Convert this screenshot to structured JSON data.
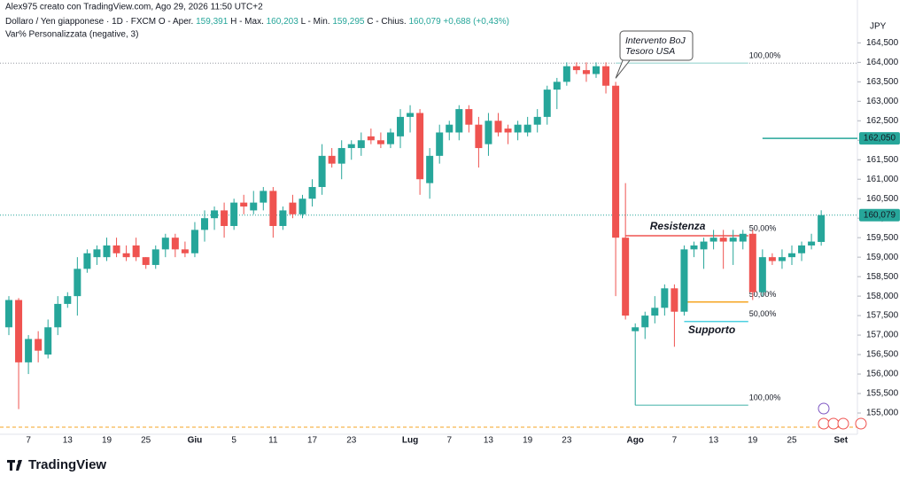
{
  "chart_data": {
    "type": "candlestick",
    "attribution": "Alex975 creato con TradingView.com, Ago 29, 2026 11:50 UTC+2",
    "symbol": "Dollaro / Yen giapponese · 1D · FXCM",
    "legend": [
      {
        "key": "O - Aper.",
        "value": "159,391"
      },
      {
        "key": "H - Max.",
        "value": "160,203"
      },
      {
        "key": "L - Min.",
        "value": "159,295"
      },
      {
        "key": "C - Chius.",
        "value": "160,079"
      }
    ],
    "change": "+0,688 (+0,43%)",
    "indicator": "Var% Personalizzata (negative, 3)",
    "currency": "JPY",
    "brand": "TradingView",
    "up_color": "#26a69a",
    "down_color": "#ef5350",
    "categories": [
      null,
      null,
      "7",
      null,
      null,
      null,
      "13",
      null,
      null,
      null,
      "19",
      null,
      null,
      null,
      "25",
      null,
      null,
      null,
      null,
      "Giu",
      null,
      null,
      null,
      "5",
      null,
      null,
      null,
      "11",
      null,
      null,
      null,
      "17",
      null,
      null,
      null,
      "23",
      null,
      null,
      null,
      null,
      null,
      "Lug",
      null,
      null,
      null,
      "7",
      null,
      null,
      null,
      "13",
      null,
      null,
      null,
      "19",
      null,
      null,
      null,
      "23",
      null,
      null,
      null,
      null,
      null,
      null,
      "Ago",
      null,
      null,
      null,
      "7",
      null,
      null,
      null,
      "13",
      null,
      null,
      null,
      "19",
      null,
      null,
      null,
      "25",
      null,
      null,
      null,
      null,
      "Set"
    ],
    "open": [
      157.2,
      157.9,
      156.3,
      156.9,
      156.5,
      157.2,
      157.8,
      158.0,
      158.7,
      159.0,
      159.0,
      159.3,
      159.1,
      159.3,
      159.0,
      158.8,
      159.2,
      159.5,
      159.2,
      159.1,
      159.7,
      160.0,
      160.2,
      159.8,
      160.4,
      160.2,
      160.4,
      160.7,
      159.8,
      160.4,
      160.1,
      160.5,
      160.8,
      161.6,
      161.4,
      161.8,
      161.8,
      162.1,
      162.0,
      161.9,
      162.1,
      162.6,
      162.7,
      160.9,
      161.6,
      162.2,
      162.2,
      162.8,
      162.4,
      161.9,
      162.5,
      162.3,
      162.2,
      162.2,
      162.4,
      162.6,
      163.3,
      163.5,
      163.9,
      163.8,
      163.7,
      163.9,
      163.4,
      159.5,
      157.1,
      157.2,
      157.5,
      157.7,
      158.2,
      157.6,
      159.2,
      159.2,
      159.4,
      159.5,
      159.4,
      159.4,
      159.6,
      158.1,
      159.0,
      158.9,
      159.0,
      159.1,
      159.3,
      159.391,
      null,
      null
    ],
    "high": [
      158.0,
      157.95,
      157.0,
      157.1,
      157.4,
      158.0,
      158.1,
      159.0,
      159.2,
      159.3,
      159.5,
      159.5,
      159.3,
      159.5,
      159.0,
      159.3,
      159.6,
      159.6,
      159.4,
      159.9,
      160.2,
      160.3,
      160.4,
      160.5,
      160.6,
      160.7,
      160.8,
      160.8,
      160.3,
      160.6,
      160.6,
      161.0,
      161.9,
      161.8,
      162.0,
      162.0,
      162.2,
      162.3,
      162.2,
      162.3,
      162.8,
      162.9,
      162.8,
      161.8,
      162.4,
      162.5,
      162.9,
      162.9,
      162.6,
      162.7,
      162.7,
      162.4,
      162.5,
      162.6,
      162.8,
      163.4,
      163.6,
      164.0,
      164.0,
      164.0,
      164.0,
      164.0,
      163.5,
      160.9,
      157.3,
      157.6,
      158.0,
      158.3,
      158.3,
      159.3,
      159.4,
      159.5,
      159.7,
      159.7,
      159.7,
      159.7,
      159.7,
      159.2,
      159.1,
      159.2,
      159.3,
      159.4,
      159.6,
      160.203,
      null,
      null
    ],
    "low": [
      157.0,
      155.1,
      156.0,
      156.3,
      156.4,
      157.0,
      157.7,
      157.5,
      158.6,
      158.8,
      158.9,
      159.0,
      158.9,
      158.9,
      158.7,
      158.7,
      159.0,
      159.0,
      159.0,
      159.0,
      159.4,
      159.7,
      159.5,
      159.7,
      160.1,
      160.1,
      160.2,
      159.5,
      159.7,
      160.0,
      160.0,
      160.3,
      160.6,
      161.3,
      161.0,
      161.5,
      161.6,
      161.9,
      161.8,
      161.8,
      161.8,
      162.2,
      160.6,
      160.5,
      161.4,
      162.0,
      162.0,
      162.2,
      161.3,
      161.6,
      162.1,
      161.9,
      162.0,
      162.1,
      162.2,
      162.4,
      162.8,
      163.4,
      163.7,
      163.5,
      163.6,
      163.2,
      158.0,
      157.4,
      155.2,
      156.9,
      157.3,
      157.5,
      156.7,
      157.5,
      159.0,
      158.7,
      159.2,
      158.7,
      158.8,
      159.2,
      157.9,
      158.0,
      158.8,
      158.7,
      158.8,
      158.9,
      159.2,
      159.295,
      null,
      null
    ],
    "close": [
      157.9,
      156.3,
      156.9,
      156.6,
      157.2,
      157.8,
      158.0,
      158.7,
      159.1,
      159.2,
      159.3,
      159.1,
      159.0,
      159.0,
      158.8,
      159.2,
      159.5,
      159.2,
      159.1,
      159.7,
      160.0,
      160.2,
      159.8,
      160.4,
      160.3,
      160.4,
      160.7,
      159.8,
      160.2,
      160.1,
      160.5,
      160.8,
      161.6,
      161.4,
      161.8,
      161.9,
      162.0,
      162.0,
      161.9,
      162.2,
      162.6,
      162.7,
      161.0,
      161.6,
      162.2,
      162.4,
      162.8,
      162.4,
      161.8,
      162.5,
      162.2,
      162.2,
      162.4,
      162.4,
      162.6,
      163.3,
      163.5,
      163.9,
      163.8,
      163.7,
      163.9,
      163.4,
      159.5,
      157.5,
      157.2,
      157.5,
      157.7,
      158.2,
      157.6,
      159.2,
      159.3,
      159.4,
      159.5,
      159.4,
      159.5,
      159.6,
      158.1,
      159.0,
      158.9,
      159.0,
      159.1,
      159.3,
      159.4,
      160.079,
      null,
      null
    ],
    "ylim": [
      154.5,
      165.6
    ],
    "yticks": [
      {
        "value": 164.5,
        "label": "164,500"
      },
      {
        "value": 164,
        "label": "164,000"
      },
      {
        "value": 163.5,
        "label": "163,500"
      },
      {
        "value": 163,
        "label": "163,000"
      },
      {
        "value": 162.5,
        "label": "162,500"
      },
      {
        "value": 162,
        "label": "162,000"
      },
      {
        "value": 161.5,
        "label": "161,500"
      },
      {
        "value": 161,
        "label": "161,000"
      },
      {
        "value": 160.5,
        "label": "160,500"
      },
      {
        "value": 160,
        "label": "160,000"
      },
      {
        "value": 159.5,
        "label": "159,500"
      },
      {
        "value": 159,
        "label": "159,000"
      },
      {
        "value": 158.5,
        "label": "158,500"
      },
      {
        "value": 158,
        "label": "158,000"
      },
      {
        "value": 157.5,
        "label": "157,500"
      },
      {
        "value": 157,
        "label": "157,000"
      },
      {
        "value": 156.5,
        "label": "156,500"
      },
      {
        "value": 156,
        "label": "156,000"
      },
      {
        "value": 155.5,
        "label": "155,500"
      },
      {
        "value": 155,
        "label": "155,000"
      }
    ],
    "last_price": {
      "value": 160.079,
      "label": "160,079"
    },
    "level_tag": {
      "value": 162.05,
      "label": "162,050",
      "from": 77
    },
    "levels": [
      {
        "price": 163.98,
        "from": 62,
        "to": 76,
        "color": "#b2dfdb",
        "label": "100,00%",
        "label_color": "#b2dfdb"
      },
      {
        "price": 155.2,
        "from": 64,
        "to": 76,
        "color": "#80cbc4",
        "label": "100,00%",
        "label_color": "#b2b2b2"
      },
      {
        "price": 159.55,
        "from": 63,
        "to": 76,
        "color": "#ef5350",
        "label": "50,00%",
        "label_color": "#ef5350"
      },
      {
        "price": 157.85,
        "from": 69,
        "to": 76,
        "color": "#f5a623",
        "label": "50,00%",
        "label_color": "#f5c77e"
      },
      {
        "price": 157.35,
        "from": 69,
        "to": 76,
        "color": "#4dd0e1",
        "label": "50,00%",
        "label_color": "#4dd0e1"
      }
    ],
    "annotations": [
      {
        "text": "Resistenza",
        "price": 159.78,
        "index": 65.5,
        "color": "#ef5350"
      },
      {
        "text": "Supporto",
        "price": 157.12,
        "index": 69.4,
        "color": "#26c6da"
      }
    ],
    "callout": {
      "lines": [
        "Intervento BoJ",
        "Tesoro USA"
      ],
      "index": 62,
      "price": 163.5
    }
  }
}
